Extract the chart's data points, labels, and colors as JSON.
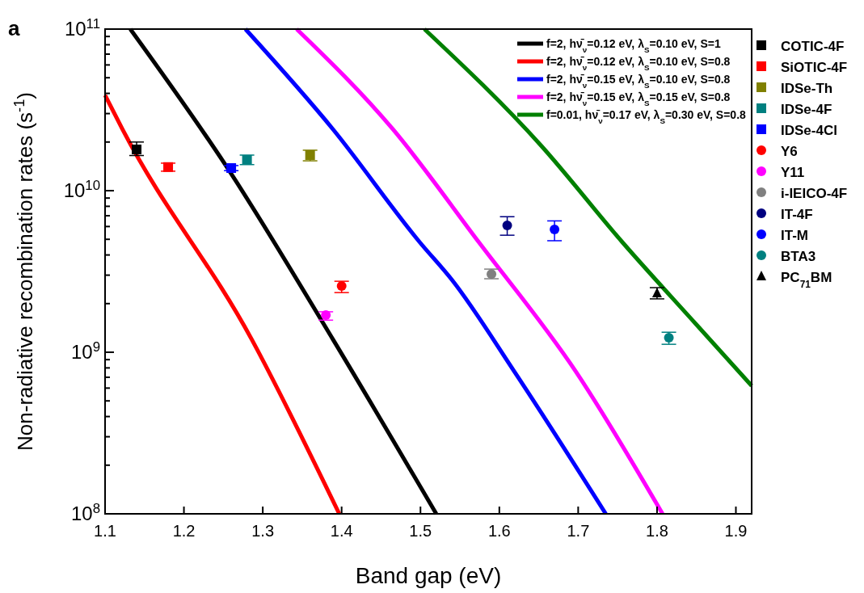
{
  "chart_data": {
    "type": "line",
    "xlabel": "Band gap (eV)",
    "ylabel": "Non-radiative recombination rates  (s$^{-1}$)",
    "annotations": [
      "a"
    ],
    "log": "y",
    "legend": "right",
    "grid": false,
    "xlim": [
      1.1,
      1.92
    ],
    "xticks": [
      1.1,
      1.2,
      1.3,
      1.4,
      1.5,
      1.6,
      1.7,
      1.8,
      1.9
    ],
    "ylim": [
      100000000.0,
      100000000000.0
    ],
    "yticks": [
      {
        "value": 100000000.0,
        "label": "10$^{8}$"
      },
      {
        "value": 200000000.0,
        "label": null
      },
      {
        "value": 300000000.0,
        "label": null
      },
      {
        "value": 400000000.0,
        "label": null
      },
      {
        "value": 500000000.0,
        "label": null
      },
      {
        "value": 600000000.0,
        "label": null
      },
      {
        "value": 700000000.0,
        "label": null
      },
      {
        "value": 800000000.0,
        "label": null
      },
      {
        "value": 900000000.0,
        "label": null
      },
      {
        "value": 1000000000.0,
        "label": "10$^{9}$"
      },
      {
        "value": 2000000000.0,
        "label": null
      },
      {
        "value": 3000000000.0,
        "label": null
      },
      {
        "value": 4000000000.0,
        "label": null
      },
      {
        "value": 5000000000.0,
        "label": null
      },
      {
        "value": 6000000000.0,
        "label": null
      },
      {
        "value": 7000000000.0,
        "label": null
      },
      {
        "value": 8000000000.0,
        "label": null
      },
      {
        "value": 9000000000.0,
        "label": null
      },
      {
        "value": 10000000000.0,
        "label": "10$^{10}$"
      },
      {
        "value": 20000000000.0,
        "label": null
      },
      {
        "value": 30000000000.0,
        "label": null
      },
      {
        "value": 40000000000.0,
        "label": null
      },
      {
        "value": 50000000000.0,
        "label": null
      },
      {
        "value": 60000000000.0,
        "label": null
      },
      {
        "value": 70000000000.0,
        "label": null
      },
      {
        "value": 80000000000.0,
        "label": null
      },
      {
        "value": 90000000000.0,
        "label": null
      },
      {
        "value": 100000000000.0,
        "label": "10$^{11}$"
      }
    ],
    "series": [
      {
        "name": "f=2, hν̄$_{ν}$=0.12 eV, λ$_{S}$=0.10 eV, S=1",
        "color": "#000000",
        "x": [
          1.132,
          1.252,
          1.389,
          1.52
        ],
        "values": [
          100000000000.0,
          14600000000.0,
          1200000000.0,
          100000000.0
        ]
      },
      {
        "name": "f=2, hν̄$_{ν}$=0.12 eV, λ$_{S}$=0.10 eV, S=0.8",
        "color": "#ff0000",
        "x": [
          1.1,
          1.122,
          1.286,
          1.397
        ],
        "values": [
          39000000000.0,
          24000000000.0,
          1200000000.0,
          100000000.0
        ]
      },
      {
        "name": "f=2, hν̄$_{ν}$=0.15 eV, λ$_{S}$=0.10 eV, S=0.8",
        "color": "#0000ff",
        "x": [
          1.278,
          1.389,
          1.499,
          1.54,
          1.619,
          1.735
        ],
        "values": [
          100000000000.0,
          24000000000.0,
          4800000000.0,
          2800000000.0,
          760000000.0,
          100000000.0
        ]
      },
      {
        "name": "f=2, hν̄$_{ν}$=0.15 eV, λ$_{S}$=0.15 eV, S=0.8",
        "color": "#ff00ff",
        "x": [
          1.343,
          1.465,
          1.574,
          1.697,
          1.807
        ],
        "values": [
          100000000000.0,
          24000000000.0,
          4800000000.0,
          760000000.0,
          100000000.0
        ]
      },
      {
        "name": "f=0.01, hν̄$_{ν}$=0.17 eV, λ$_{S}$=0.30 eV, S=0.8",
        "color": "#008000",
        "x": [
          1.505,
          1.653,
          1.756,
          1.849,
          1.92
        ],
        "values": [
          100000000000.0,
          19000000000.0,
          4800000000.0,
          1500000000.0,
          620000000.0
        ]
      },
      {
        "type": "scatter",
        "marker": "square",
        "name": "COTIC-4F",
        "color": "#000000",
        "x": [
          1.14
        ],
        "values": [
          18000000000.0
        ],
        "errors": [
          [
            16500000000.0,
            20000000000.0
          ]
        ]
      },
      {
        "type": "scatter",
        "marker": "square",
        "name": "SiOTIC-4F",
        "color": "#ff0000",
        "x": [
          1.18
        ],
        "values": [
          14000000000.0
        ],
        "errors": [
          [
            13200000000.0,
            14800000000.0
          ]
        ]
      },
      {
        "type": "scatter",
        "marker": "square",
        "name": "IDSe-Th",
        "color": "#808000",
        "x": [
          1.36
        ],
        "values": [
          16600000000.0
        ],
        "errors": [
          [
            15300000000.0,
            17800000000.0
          ]
        ]
      },
      {
        "type": "scatter",
        "marker": "square",
        "name": "IDSe-4F",
        "color": "#008080",
        "x": [
          1.28
        ],
        "values": [
          15500000000.0
        ],
        "errors": [
          [
            14500000000.0,
            16600000000.0
          ]
        ]
      },
      {
        "type": "scatter",
        "marker": "square",
        "name": "IDSe-4Cl",
        "color": "#0000ff",
        "x": [
          1.26
        ],
        "values": [
          13800000000.0
        ],
        "errors": [
          [
            13300000000.0,
            14300000000.0
          ]
        ]
      },
      {
        "type": "scatter",
        "marker": "circle",
        "name": "Y6",
        "color": "#ff0000",
        "x": [
          1.4
        ],
        "values": [
          2570000000.0
        ],
        "errors": [
          [
            2340000000.0,
            2750000000.0
          ]
        ]
      },
      {
        "type": "scatter",
        "marker": "circle",
        "name": "Y11",
        "color": "#ff00ff",
        "x": [
          1.38
        ],
        "values": [
          1700000000.0
        ],
        "errors": [
          [
            1580000000.0,
            1780000000.0
          ]
        ]
      },
      {
        "type": "scatter",
        "marker": "circle",
        "name": "i-IEICO-4F",
        "color": "#808080",
        "x": [
          1.59
        ],
        "values": [
          3050000000.0
        ],
        "errors": [
          [
            2850000000.0,
            3270000000.0
          ]
        ]
      },
      {
        "type": "scatter",
        "marker": "circle",
        "name": "IT-4F",
        "color": "#000080",
        "x": [
          1.61
        ],
        "values": [
          6100000000.0
        ],
        "errors": [
          [
            5300000000.0,
            6900000000.0
          ]
        ]
      },
      {
        "type": "scatter",
        "marker": "circle",
        "name": "IT-M",
        "color": "#0000ff",
        "x": [
          1.67
        ],
        "values": [
          5750000000.0
        ],
        "errors": [
          [
            4900000000.0,
            6500000000.0
          ]
        ]
      },
      {
        "type": "scatter",
        "marker": "circle",
        "name": "BTA3",
        "color": "#008080",
        "x": [
          1.815
        ],
        "values": [
          1230000000.0
        ],
        "errors": [
          [
            1120000000.0,
            1330000000.0
          ]
        ]
      },
      {
        "type": "scatter",
        "marker": "triangle",
        "name": "PC$_{71}$BM",
        "color": "#000000",
        "x": [
          1.8
        ],
        "values": [
          2320000000.0
        ],
        "errors": [
          [
            2140000000.0,
            2510000000.0
          ]
        ]
      }
    ]
  }
}
